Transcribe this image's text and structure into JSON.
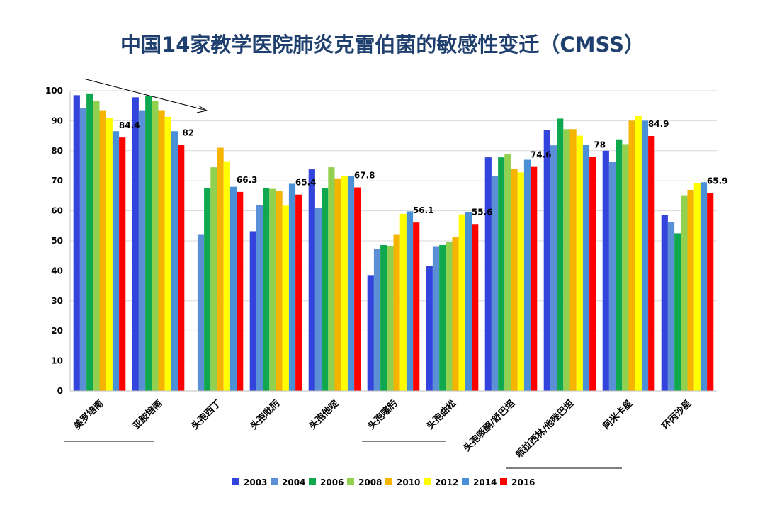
{
  "title": "中国14家教学医院肺炎克雷伯菌的敏感性变迁（CMSS）",
  "chart_data": {
    "type": "bar",
    "title": "中国14家教学医院肺炎克雷伯菌的敏感性变迁（CMSS）",
    "xlabel": "",
    "ylabel": "",
    "ylim": [
      0,
      100
    ],
    "yticks": [
      0,
      10,
      20,
      30,
      40,
      50,
      60,
      70,
      80,
      90,
      100
    ],
    "grid": true,
    "legend_position": "bottom",
    "categories": [
      "美罗培南",
      "亚胺培南",
      "头孢西丁",
      "头孢吡肟",
      "头孢他啶",
      "头孢噻肟",
      "头孢曲松",
      "头孢哌酮/舒巴坦",
      "哌拉西林/他唑巴坦",
      "阿米卡星",
      "环丙沙星"
    ],
    "series": [
      {
        "name": "2003",
        "color": "#3344dd",
        "values": [
          98.5,
          97.8,
          null,
          53.2,
          73.8,
          38.6,
          41.6,
          77.8,
          86.8,
          80.0,
          58.5
        ]
      },
      {
        "name": "2004",
        "color": "#5b8fd6",
        "values": [
          94.2,
          93.5,
          52.0,
          61.8,
          61.0,
          47.2,
          48.0,
          71.5,
          81.8,
          76.2,
          56.2
        ]
      },
      {
        "name": "2006",
        "color": "#0fa84e",
        "values": [
          99.1,
          98.2,
          67.5,
          67.5,
          67.5,
          48.6,
          48.6,
          77.8,
          90.7,
          83.8,
          52.5
        ]
      },
      {
        "name": "2008",
        "color": "#92d050",
        "values": [
          96.5,
          96.5,
          74.5,
          67.3,
          74.5,
          48.3,
          49.6,
          78.8,
          87.2,
          82.2,
          65.2
        ]
      },
      {
        "name": "2010",
        "color": "#f5b400",
        "values": [
          93.5,
          93.5,
          81.0,
          66.5,
          70.8,
          52.0,
          51.2,
          74.0,
          87.2,
          90.0,
          67.0
        ]
      },
      {
        "name": "2012",
        "color": "#ffff00",
        "values": [
          90.8,
          91.3,
          76.5,
          61.7,
          71.5,
          59.0,
          58.8,
          72.8,
          85.0,
          91.5,
          69.2
        ]
      },
      {
        "name": "2014",
        "color": "#4a90d6",
        "values": [
          86.5,
          86.5,
          68.0,
          69.0,
          71.5,
          59.8,
          59.5,
          77.0,
          82.0,
          90.0,
          69.5
        ]
      },
      {
        "name": "2016",
        "color": "#ff0000",
        "values": [
          84.4,
          82,
          66.3,
          65.4,
          67.8,
          56.1,
          55.6,
          74.6,
          78,
          84.9,
          65.9
        ],
        "data_labels": [
          "84.4",
          "82",
          "66.3",
          "65.4",
          "67.8",
          "56.1",
          "55.6",
          "74.6",
          "78",
          "84.9",
          "65.9"
        ]
      }
    ],
    "annotations": [
      {
        "type": "arrow",
        "description": "downward trend arrow over 美罗培南 and 亚胺培南"
      },
      {
        "type": "underline",
        "categories": [
          "美罗培南",
          "亚胺培南"
        ]
      },
      {
        "type": "underline",
        "categories": [
          "头孢噻肟",
          "头孢曲松"
        ]
      },
      {
        "type": "underline",
        "categories": [
          "头孢哌酮/舒巴坦",
          "哌拉西林/他唑巴坦",
          "阿米卡星"
        ]
      }
    ]
  }
}
